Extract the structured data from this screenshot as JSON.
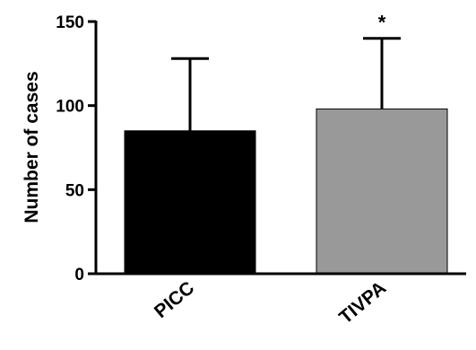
{
  "chart_data": {
    "type": "bar",
    "title": "",
    "xlabel": "",
    "ylabel": "Number of cases",
    "ylim": [
      0,
      150
    ],
    "yticks": [
      0,
      50,
      100,
      150
    ],
    "categories": [
      "PICC",
      "TIVPA"
    ],
    "values": [
      85,
      98
    ],
    "error_upper": [
      128,
      140
    ],
    "bar_colors": [
      "#000000",
      "#999999"
    ],
    "annotations": [
      {
        "category": "TIVPA",
        "text": "*"
      }
    ],
    "grid": false,
    "legend": "none"
  }
}
